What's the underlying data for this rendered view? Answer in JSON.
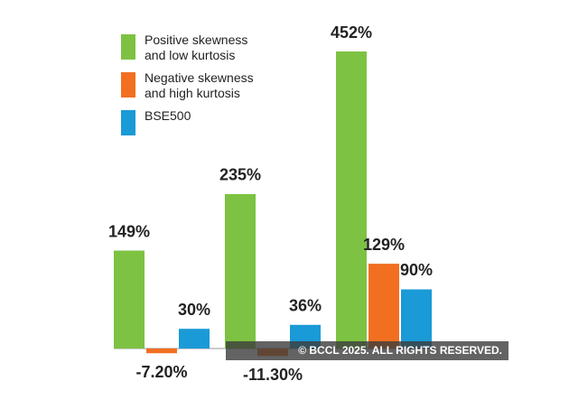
{
  "chart_data": {
    "type": "bar",
    "categories": [
      null,
      null,
      null
    ],
    "series": [
      {
        "name": "Positive skewness and low kurtosis",
        "color": "#7dc242",
        "values": [
          149,
          235,
          452
        ],
        "value_labels": [
          "149%",
          "235%",
          "452%"
        ]
      },
      {
        "name": "Negative skewness and high kurtosis",
        "color": "#f26f21",
        "values": [
          -7.2,
          -11.3,
          129
        ],
        "value_labels": [
          "-7.20%",
          "-11.30%",
          "129%"
        ]
      },
      {
        "name": "BSE500",
        "color": "#1a9ad6",
        "values": [
          30,
          36,
          90
        ],
        "value_labels": [
          "30%",
          "36%",
          "90%"
        ]
      }
    ],
    "watermark": "© BCCL 2025. ALL RIGHTS RESERVED."
  }
}
